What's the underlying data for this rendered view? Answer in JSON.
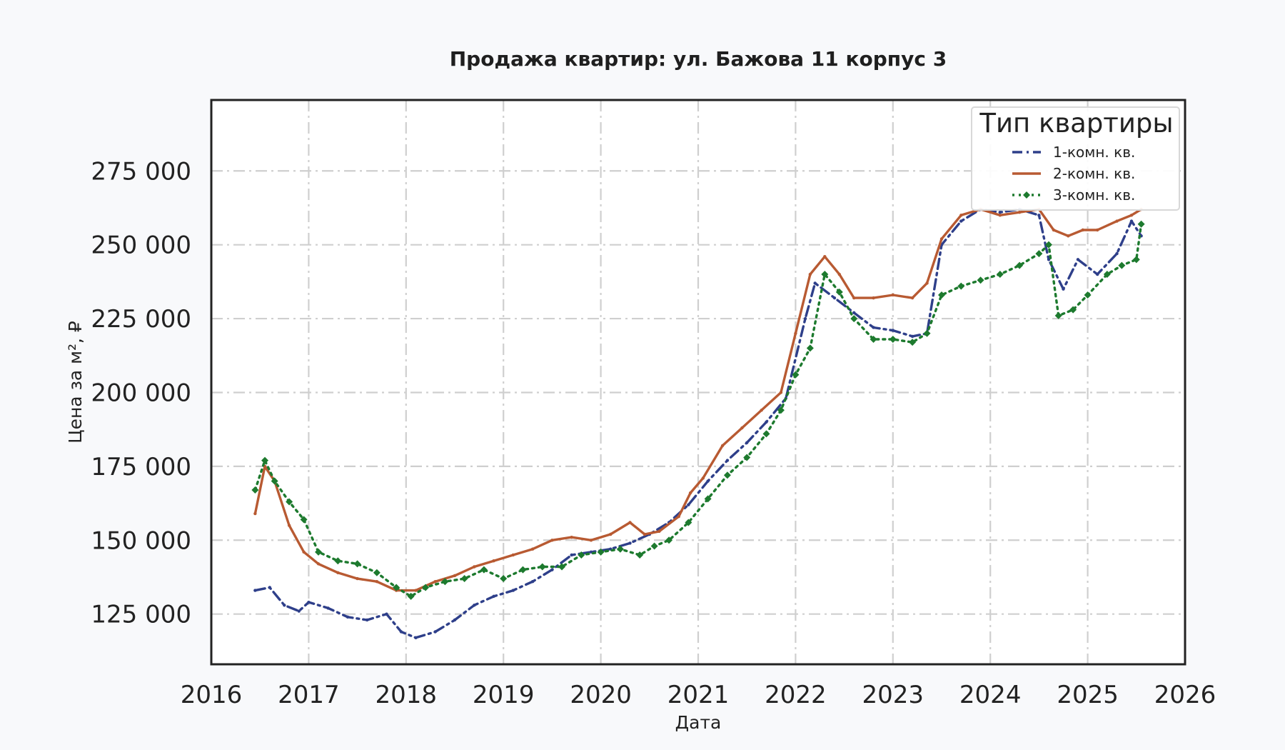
{
  "chart_data": {
    "type": "line",
    "title": "Продажа квартир: ул. Бажова 11 корпус 3",
    "xlabel": "Дата",
    "ylabel": "Цена за м², ₽",
    "xlim": [
      2016,
      2026
    ],
    "ylim": [
      108000,
      299000
    ],
    "x_ticks": [
      "2016",
      "2017",
      "2018",
      "2019",
      "2020",
      "2021",
      "2022",
      "2023",
      "2024",
      "2025",
      "2026"
    ],
    "y_ticks": [
      "125 000",
      "150 000",
      "175 000",
      "200 000",
      "225 000",
      "250 000",
      "275 000"
    ],
    "y_tick_values": [
      125000,
      150000,
      175000,
      200000,
      225000,
      250000,
      275000
    ],
    "grid": true,
    "legend": {
      "title": "Тип квартиры",
      "placement": "top-right"
    },
    "series": [
      {
        "name": "1-комн. кв.",
        "color": "#2e3f8a",
        "style": "dashdot",
        "x": [
          2016.45,
          2016.6,
          2016.75,
          2016.9,
          2017.0,
          2017.2,
          2017.4,
          2017.6,
          2017.8,
          2017.95,
          2018.1,
          2018.3,
          2018.5,
          2018.7,
          2018.9,
          2019.1,
          2019.3,
          2019.5,
          2019.7,
          2019.9,
          2020.1,
          2020.3,
          2020.5,
          2020.7,
          2020.9,
          2021.1,
          2021.3,
          2021.5,
          2021.7,
          2021.9,
          2022.1,
          2022.2,
          2022.4,
          2022.6,
          2022.8,
          2023.0,
          2023.2,
          2023.35,
          2023.5,
          2023.7,
          2023.9,
          2024.1,
          2024.3,
          2024.5,
          2024.6,
          2024.75,
          2024.9,
          2025.1,
          2025.3,
          2025.45,
          2025.55
        ],
        "values": [
          133000,
          134000,
          128000,
          126000,
          129000,
          127000,
          124000,
          123000,
          125000,
          119000,
          117000,
          119000,
          123000,
          128000,
          131000,
          133000,
          136000,
          140000,
          145000,
          146000,
          147000,
          149000,
          152000,
          156000,
          162000,
          170000,
          177000,
          183000,
          190000,
          198000,
          225000,
          237000,
          232000,
          227000,
          222000,
          221000,
          219000,
          220000,
          250000,
          258000,
          262000,
          261000,
          262000,
          260000,
          245000,
          235000,
          245000,
          240000,
          247000,
          258000,
          253000
        ]
      },
      {
        "name": "2-комн. кв.",
        "color": "#b85a32",
        "style": "solid",
        "x": [
          2016.45,
          2016.55,
          2016.65,
          2016.8,
          2016.95,
          2017.1,
          2017.3,
          2017.5,
          2017.7,
          2017.9,
          2018.1,
          2018.3,
          2018.5,
          2018.7,
          2018.9,
          2019.1,
          2019.3,
          2019.5,
          2019.7,
          2019.9,
          2020.1,
          2020.3,
          2020.45,
          2020.6,
          2020.8,
          2020.92,
          2021.05,
          2021.25,
          2021.45,
          2021.65,
          2021.85,
          2022.0,
          2022.15,
          2022.3,
          2022.45,
          2022.6,
          2022.8,
          2023.0,
          2023.2,
          2023.35,
          2023.5,
          2023.7,
          2023.9,
          2024.1,
          2024.3,
          2024.5,
          2024.65,
          2024.8,
          2024.95,
          2025.1,
          2025.3,
          2025.45,
          2025.55
        ],
        "values": [
          159000,
          175000,
          170000,
          155000,
          146000,
          142000,
          139000,
          137000,
          136000,
          133000,
          133000,
          136000,
          138000,
          141000,
          143000,
          145000,
          147000,
          150000,
          151000,
          150000,
          152000,
          156000,
          152000,
          153000,
          158000,
          166000,
          171000,
          182000,
          188000,
          194000,
          200000,
          220000,
          240000,
          246000,
          240000,
          232000,
          232000,
          233000,
          232000,
          237000,
          252000,
          260000,
          262000,
          260000,
          261000,
          262000,
          255000,
          253000,
          255000,
          255000,
          258000,
          260000,
          262000
        ]
      },
      {
        "name": "3-комн. кв.",
        "color": "#1d7a2e",
        "style": "dotted-diamond",
        "x": [
          2016.45,
          2016.55,
          2016.65,
          2016.8,
          2016.95,
          2017.1,
          2017.3,
          2017.5,
          2017.7,
          2017.9,
          2018.05,
          2018.2,
          2018.4,
          2018.6,
          2018.8,
          2019.0,
          2019.2,
          2019.4,
          2019.6,
          2019.8,
          2020.0,
          2020.2,
          2020.4,
          2020.55,
          2020.7,
          2020.9,
          2021.1,
          2021.3,
          2021.5,
          2021.7,
          2021.85,
          2022.0,
          2022.15,
          2022.3,
          2022.45,
          2022.6,
          2022.8,
          2023.0,
          2023.2,
          2023.35,
          2023.5,
          2023.7,
          2023.9,
          2024.1,
          2024.3,
          2024.5,
          2024.6,
          2024.7,
          2024.85,
          2025.0,
          2025.2,
          2025.35,
          2025.5,
          2025.55
        ],
        "values": [
          167000,
          177000,
          170000,
          163000,
          157000,
          146000,
          143000,
          142000,
          139000,
          134000,
          131000,
          134000,
          136000,
          137000,
          140000,
          137000,
          140000,
          141000,
          141000,
          145000,
          146000,
          147000,
          145000,
          148000,
          150000,
          156000,
          164000,
          172000,
          178000,
          186000,
          194000,
          206000,
          215000,
          240000,
          234000,
          225000,
          218000,
          218000,
          217000,
          220000,
          233000,
          236000,
          238000,
          240000,
          243000,
          247000,
          250000,
          226000,
          228000,
          233000,
          240000,
          243000,
          245000,
          257000
        ]
      }
    ]
  }
}
